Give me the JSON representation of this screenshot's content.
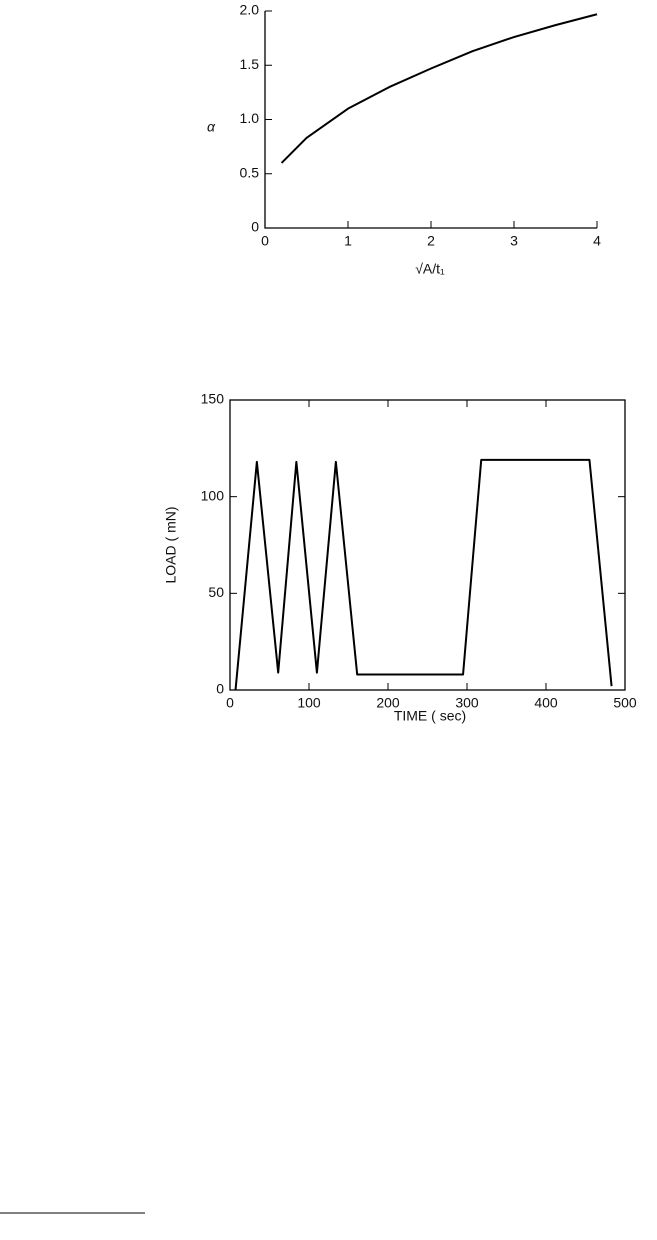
{
  "chart_data": [
    {
      "type": "line",
      "x_label": "√A/t₁",
      "y_label": "α",
      "x": [
        0.2,
        0.5,
        1,
        1.5,
        2,
        2.5,
        3,
        3.5,
        4
      ],
      "series": [
        {
          "color": "#000000",
          "values": [
            0.6,
            0.83,
            1.1,
            1.3,
            1.47,
            1.63,
            1.76,
            1.87,
            1.97
          ]
        }
      ],
      "xlim": [
        0,
        4
      ],
      "xticks": [
        0,
        1,
        2,
        3,
        4
      ],
      "ylim": [
        0,
        2
      ],
      "yticks": [
        0,
        0.5,
        {
          "value": 1,
          "label": "1.0"
        },
        1.5,
        {
          "value": 2,
          "label": "2.0"
        }
      ]
    },
    {
      "type": "line",
      "x_label": "TIME ( sec)",
      "y_label": "LOAD ( mN)",
      "x": [
        7,
        34,
        61,
        84,
        110,
        134,
        161,
        295,
        318,
        455,
        483
      ],
      "series": [
        {
          "color": "#000000",
          "values": [
            0,
            118,
            9,
            118,
            9,
            118,
            8,
            8,
            119,
            119,
            2
          ]
        }
      ],
      "xlim": [
        0,
        500
      ],
      "xticks": [
        0,
        100,
        200,
        300,
        400,
        500
      ],
      "ylim": [
        0,
        150
      ],
      "yticks": [
        0,
        50,
        100,
        150
      ]
    }
  ]
}
